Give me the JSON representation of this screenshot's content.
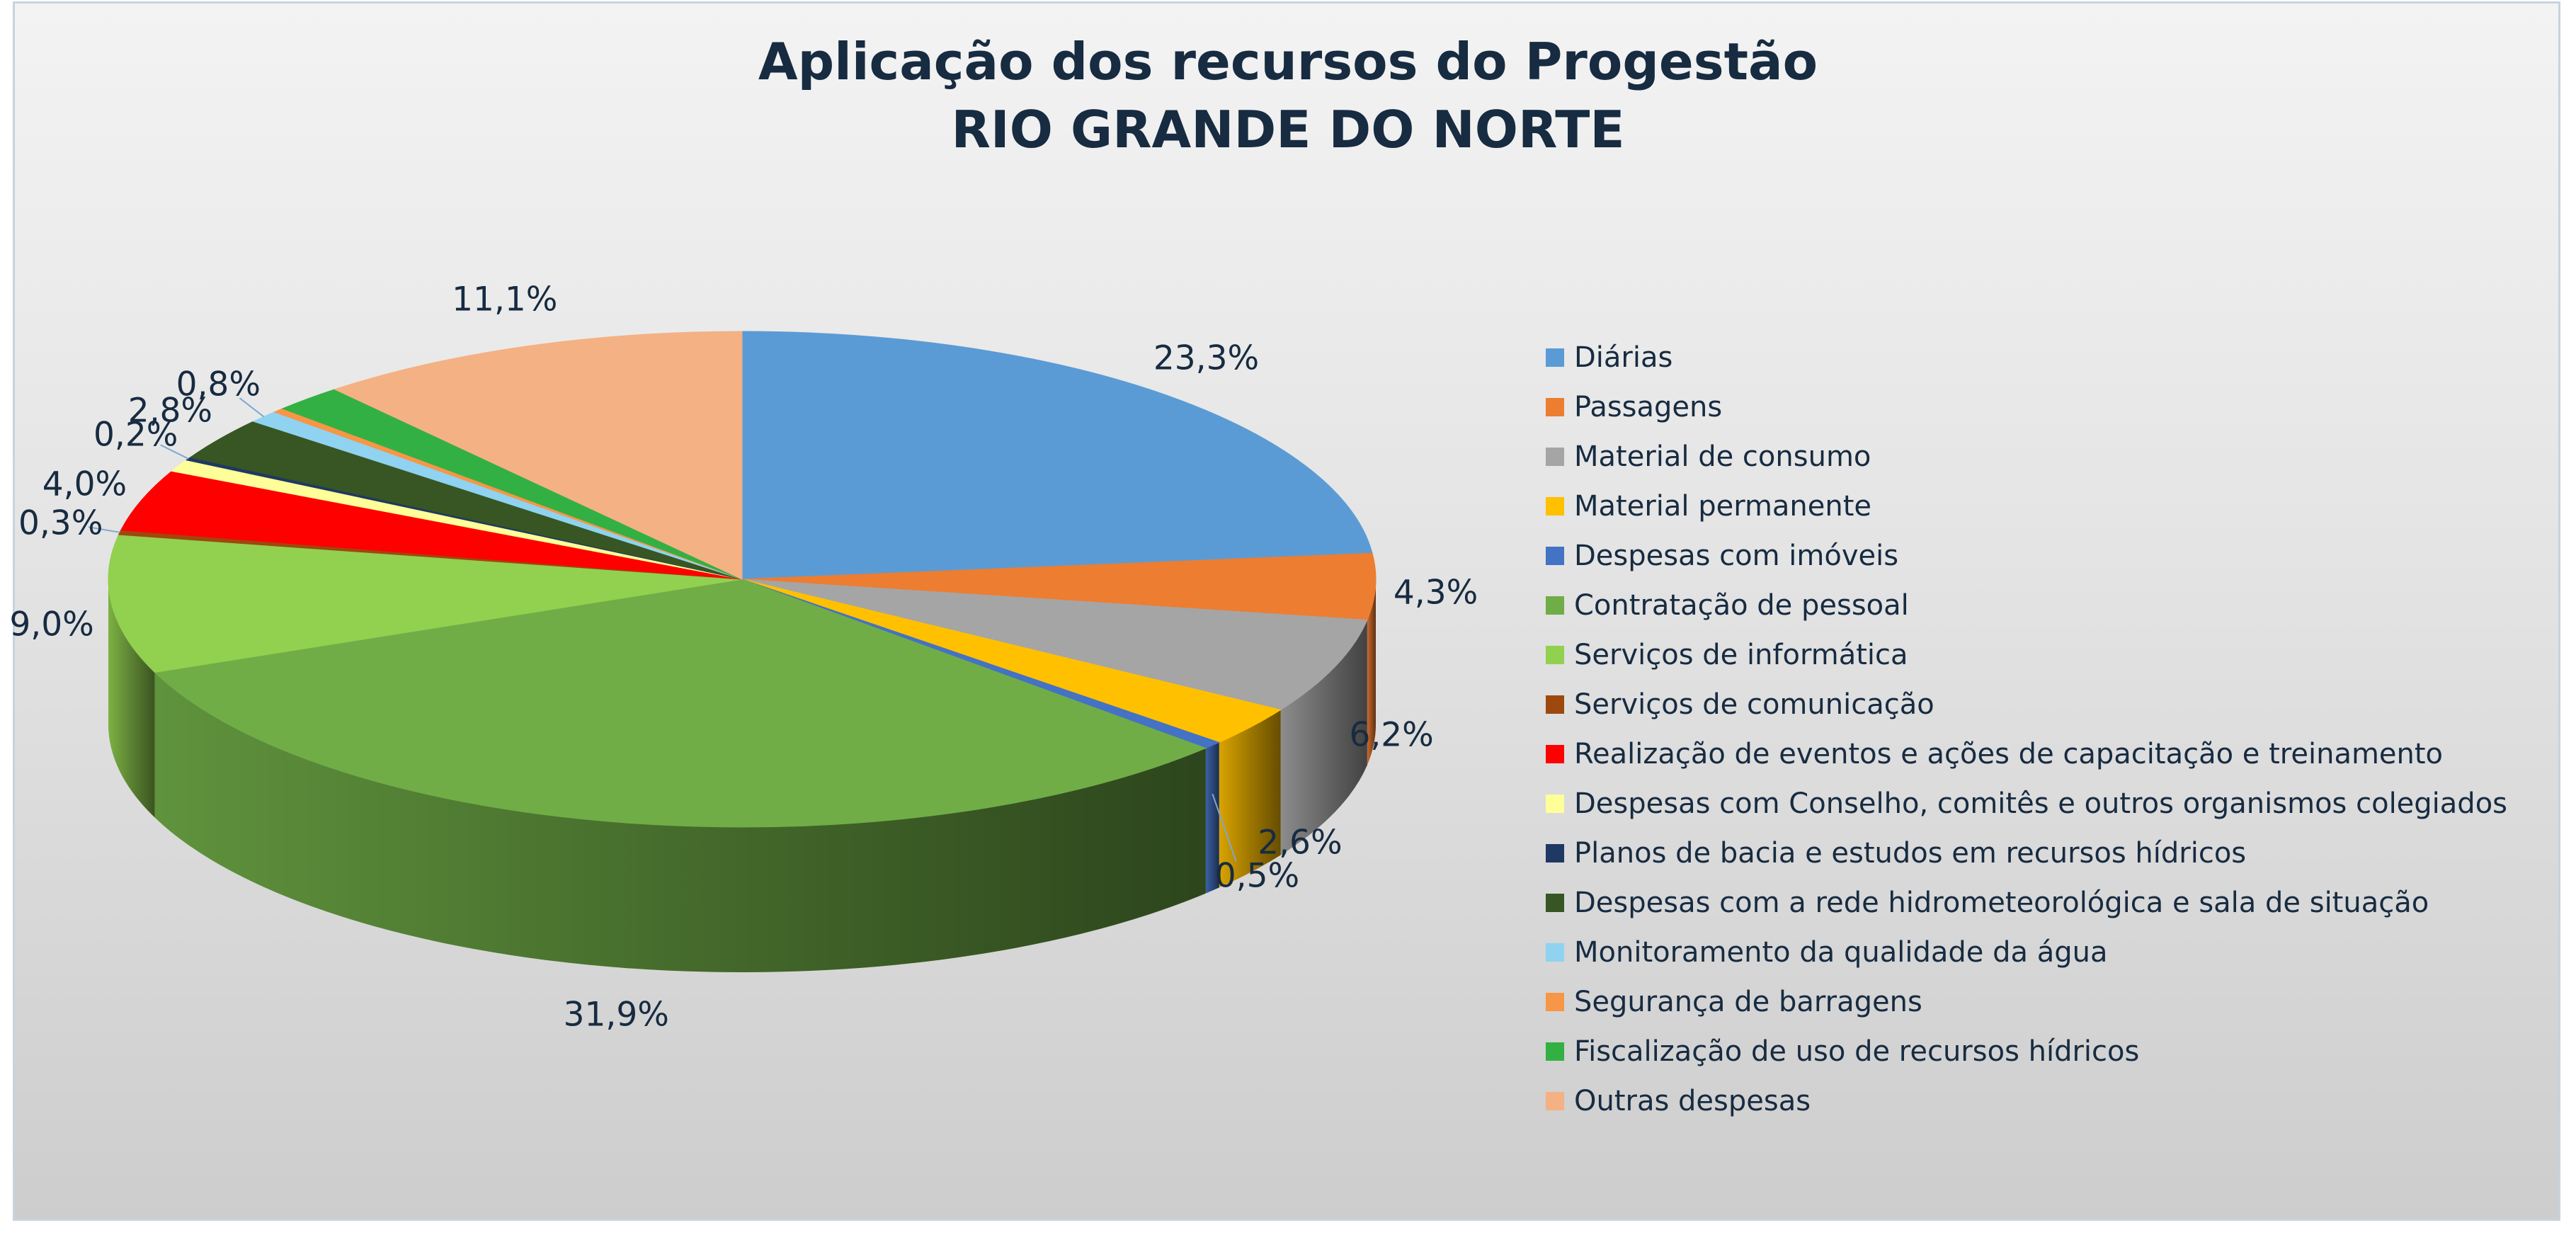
{
  "chart_data": {
    "type": "pie",
    "title": "Aplicação dos recursos do Progestão",
    "subtitle": "RIO GRANDE DO NORTE",
    "legend_position": "right",
    "slices": [
      {
        "name": "Diárias",
        "value": 23.3,
        "label": "23,3%",
        "color": "#5b9bd5"
      },
      {
        "name": "Passagens",
        "value": 4.3,
        "label": "4,3%",
        "color": "#ed7d31"
      },
      {
        "name": "Material de consumo",
        "value": 6.2,
        "label": "6,2%",
        "color": "#a5a5a5"
      },
      {
        "name": "Material permanente",
        "value": 2.6,
        "label": "2,6%",
        "color": "#ffc000"
      },
      {
        "name": "Despesas com imóveis",
        "value": 0.5,
        "label": "0,5%",
        "color": "#4472c4"
      },
      {
        "name": "Contratação de pessoal",
        "value": 31.9,
        "label": "31,9%",
        "color": "#70ad47"
      },
      {
        "name": "Serviços de informática",
        "value": 9.0,
        "label": "9,0%",
        "color": "#92d050"
      },
      {
        "name": "Serviços de comunicação",
        "value": 0.3,
        "label": "0,3%",
        "color": "#9e480e"
      },
      {
        "name": "Realização de eventos e ações de capacitação e treinamento",
        "value": 4.0,
        "label": "4,0%",
        "color": "#ff0000"
      },
      {
        "name": "Despesas com Conselho, comitês e outros organismos colegiados",
        "value": 0.8,
        "label": "",
        "color": "#ffff99"
      },
      {
        "name": "Planos de bacia e estudos em recursos hídricos",
        "value": 0.2,
        "label": "0,2%",
        "color": "#1f3864"
      },
      {
        "name": "Despesas com a rede hidrometeorológica e sala de situação",
        "value": 2.8,
        "label": "2,8%",
        "color": "#375623"
      },
      {
        "name": "Monitoramento da qualidade da água",
        "value": 0.8,
        "label": "0,8%",
        "color": "#8fd3f0"
      },
      {
        "name": "Segurança de barragens",
        "value": 0.3,
        "label": "",
        "color": "#f79646"
      },
      {
        "name": "Fiscalização de uso de recursos hídricos",
        "value": 1.8,
        "label": "",
        "color": "#33b043"
      },
      {
        "name": "Outras despesas",
        "value": 11.1,
        "label": "11,1%",
        "color": "#f4b183"
      }
    ]
  }
}
